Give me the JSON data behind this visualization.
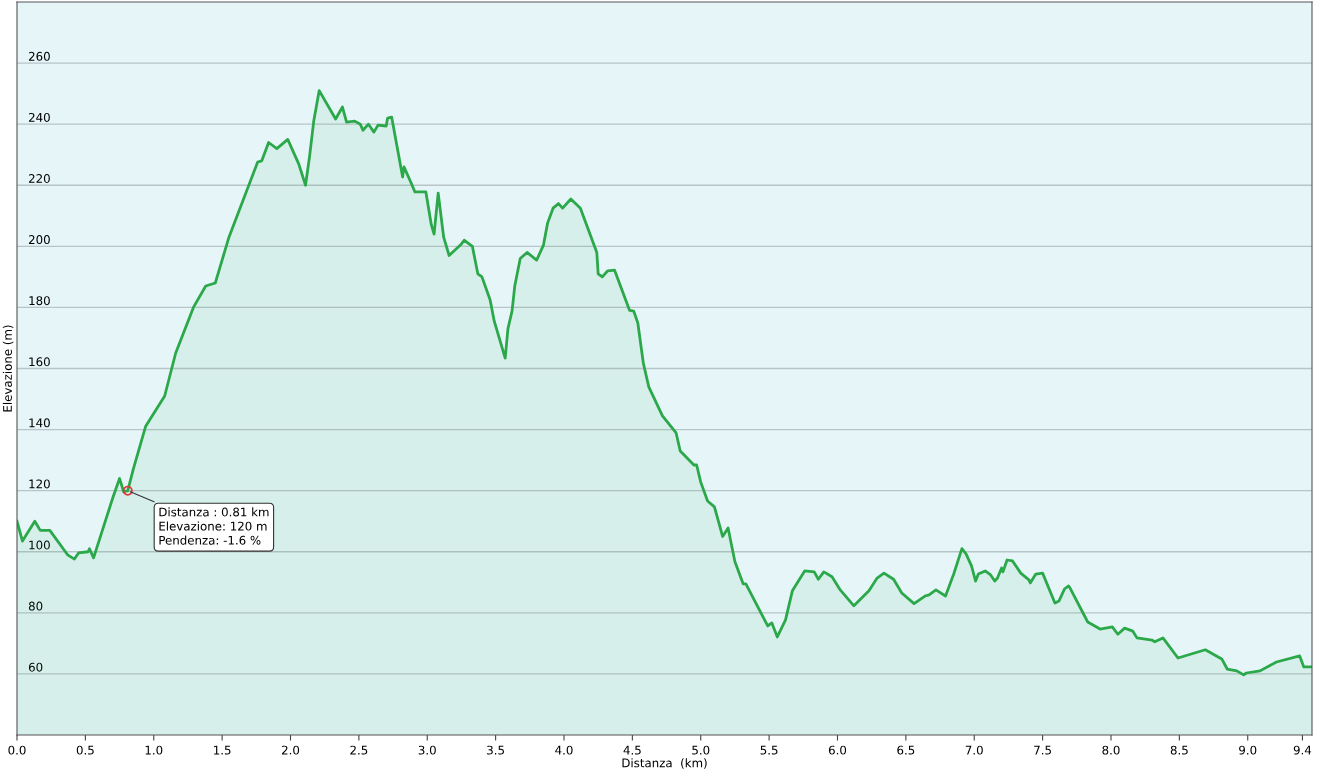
{
  "chart_data": {
    "type": "area",
    "xlabel": "Distanza  (km)",
    "ylabel": "Elevazione (m)",
    "xlim": [
      0,
      9.47
    ],
    "ylim": [
      40,
      280
    ],
    "xticks": [
      {
        "value": 0,
        "label": "0.0"
      },
      {
        "value": 0.5,
        "label": "0.5"
      },
      {
        "value": 1,
        "label": "1.0"
      },
      {
        "value": 1.5,
        "label": "1.5"
      },
      {
        "value": 2,
        "label": "2.0"
      },
      {
        "value": 2.5,
        "label": "2.5"
      },
      {
        "value": 3,
        "label": "3.0"
      },
      {
        "value": 3.5,
        "label": "3.5"
      },
      {
        "value": 4,
        "label": "4.0"
      },
      {
        "value": 4.5,
        "label": "4.5"
      },
      {
        "value": 5,
        "label": "5.0"
      },
      {
        "value": 5.5,
        "label": "5.5"
      },
      {
        "value": 6,
        "label": "6.0"
      },
      {
        "value": 6.5,
        "label": "6.5"
      },
      {
        "value": 7,
        "label": "7.0"
      },
      {
        "value": 7.5,
        "label": "7.5"
      },
      {
        "value": 8,
        "label": "8.0"
      },
      {
        "value": 8.5,
        "label": "8.5"
      },
      {
        "value": 9,
        "label": "9.0"
      },
      {
        "value": 9.4,
        "label": "9.4"
      }
    ],
    "yticks": [
      60,
      80,
      100,
      120,
      140,
      160,
      180,
      200,
      220,
      240,
      260
    ],
    "grid": "y",
    "annotations": [
      {
        "text": "Distanza : 0.81 km\nElevazione: 120 m\nPendenza: -1.6 %",
        "x": 0.81,
        "y": 120
      }
    ],
    "series": [
      {
        "color": "#2aa84a",
        "x": [
          0,
          0.04,
          0.13,
          0.17,
          0.24,
          0.37,
          0.42,
          0.45,
          0.52,
          0.53,
          0.56,
          0.7,
          0.75,
          0.78,
          0.81,
          0.85,
          0.94,
          1.08,
          1.16,
          1.29,
          1.38,
          1.45,
          1.55,
          1.76,
          1.79,
          1.84,
          1.9,
          1.98,
          2.06,
          2.11,
          2.14,
          2.17,
          2.21,
          2.33,
          2.38,
          2.41,
          2.47,
          2.51,
          2.53,
          2.57,
          2.61,
          2.64,
          2.7,
          2.71,
          2.74,
          2.82,
          2.83,
          2.88,
          2.91,
          2.99,
          3.03,
          3.05,
          3.08,
          3.12,
          3.16,
          3.25,
          3.27,
          3.33,
          3.37,
          3.4,
          3.46,
          3.49,
          3.57,
          3.59,
          3.62,
          3.64,
          3.68,
          3.73,
          3.8,
          3.85,
          3.88,
          3.92,
          3.96,
          3.99,
          4.05,
          4.12,
          4.24,
          4.25,
          4.28,
          4.32,
          4.37,
          4.48,
          4.51,
          4.54,
          4.58,
          4.62,
          4.72,
          4.82,
          4.85,
          4.95,
          4.97,
          5.0,
          5.05,
          5.1,
          5.16,
          5.2,
          5.25,
          5.31,
          5.33,
          5.49,
          5.52,
          5.56,
          5.62,
          5.67,
          5.76,
          5.83,
          5.86,
          5.9,
          5.96,
          6.02,
          6.12,
          6.23,
          6.29,
          6.34,
          6.41,
          6.47,
          6.56,
          6.64,
          6.67,
          6.72,
          6.79,
          6.85,
          6.91,
          6.94,
          6.98,
          7.01,
          7.03,
          7.08,
          7.12,
          7.15,
          7.17,
          7.2,
          7.21,
          7.24,
          7.28,
          7.34,
          7.4,
          7.41,
          7.45,
          7.5,
          7.59,
          7.62,
          7.66,
          7.69,
          7.7,
          7.83,
          7.92,
          8.01,
          8.05,
          8.1,
          8.16,
          8.19,
          8.3,
          8.32,
          8.38,
          8.49,
          8.69,
          8.81,
          8.85,
          8.92,
          8.97,
          8.99,
          9.09,
          9.21,
          9.38,
          9.41,
          9.47
        ],
        "values": [
          110,
          103.5,
          110,
          107,
          107,
          99,
          97.6,
          99.6,
          100,
          101,
          98,
          117.6,
          124,
          119.6,
          120,
          127,
          141,
          151,
          165,
          180,
          187,
          188,
          203,
          227.6,
          228,
          234,
          232,
          235,
          227,
          220,
          229.6,
          241,
          251,
          241.7,
          245.6,
          240.7,
          241,
          240,
          238,
          240,
          237.4,
          239.7,
          239.4,
          242,
          242.3,
          222.7,
          226,
          221,
          217.8,
          217.8,
          207,
          204,
          217.4,
          203,
          197,
          200.8,
          202,
          200,
          191,
          190,
          182.4,
          175.5,
          163.4,
          173,
          178.8,
          187,
          196,
          198,
          195.5,
          200.4,
          207.6,
          212.5,
          214,
          212.5,
          215.5,
          212.5,
          198,
          191,
          190,
          192,
          192.2,
          179,
          178.8,
          174.9,
          161.8,
          154,
          144.5,
          138.9,
          133,
          128.4,
          128.4,
          122.8,
          116.6,
          114.7,
          105,
          107.8,
          96.7,
          89.5,
          89.5,
          75.7,
          76.7,
          72.1,
          77.7,
          87.2,
          93.7,
          93.4,
          91,
          93.4,
          91.8,
          87.5,
          82.3,
          87.2,
          91.4,
          93,
          91,
          86.5,
          83,
          85.5,
          85.9,
          87.5,
          85.5,
          92.7,
          101,
          99.3,
          95.4,
          90.4,
          92.7,
          93.7,
          92.4,
          90.4,
          91.4,
          94.7,
          93.4,
          97.3,
          97,
          93,
          90.8,
          89.8,
          92.7,
          93,
          83.2,
          83.9,
          87.8,
          88.8,
          88.2,
          77,
          74.7,
          75.4,
          73,
          75,
          74,
          71.8,
          71.1,
          70.5,
          71.8,
          65.2,
          67.9,
          64.9,
          61.6,
          61,
          59.7,
          60.3,
          61,
          63.9,
          65.9,
          62.3,
          62.3
        ]
      }
    ]
  }
}
